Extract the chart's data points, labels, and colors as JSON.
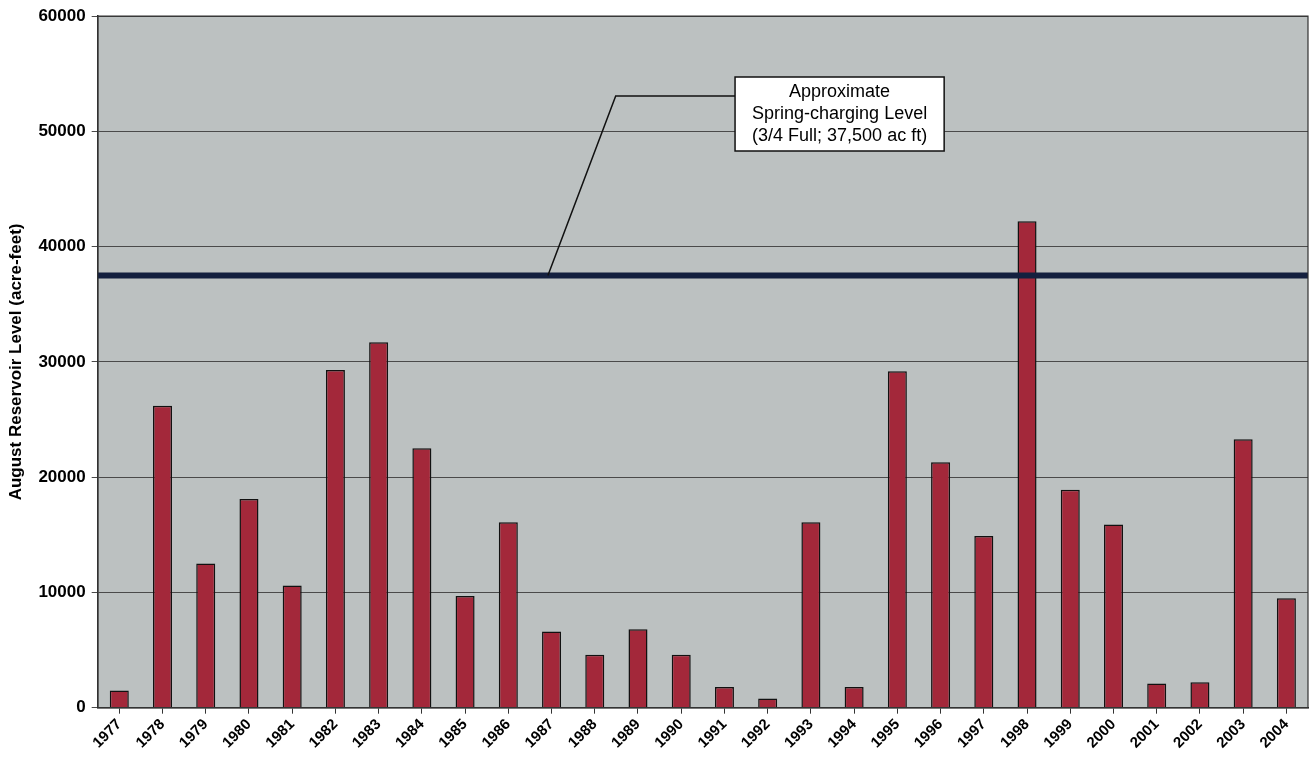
{
  "chart_data": {
    "type": "bar",
    "ylabel": "August Reservoir Level (acre-feet)",
    "categories": [
      "1977",
      "1978",
      "1979",
      "1980",
      "1981",
      "1982",
      "1983",
      "1984",
      "1985",
      "1986",
      "1987",
      "1988",
      "1989",
      "1990",
      "1991",
      "1992",
      "1993",
      "1994",
      "1995",
      "1996",
      "1997",
      "1998",
      "1999",
      "2000",
      "2001",
      "2002",
      "2003",
      "2004"
    ],
    "values": [
      1500,
      26200,
      12500,
      18100,
      10600,
      29300,
      31700,
      22500,
      9700,
      16100,
      6600,
      4600,
      6800,
      4600,
      1800,
      800,
      16100,
      1800,
      29200,
      21300,
      14900,
      42200,
      18900,
      15900,
      2100,
      2200,
      23300,
      9500
    ],
    "color": "#a3283a",
    "ylim": [
      0,
      60000
    ],
    "yticks": [
      0,
      10000,
      20000,
      30000,
      40000,
      50000,
      60000
    ],
    "grid": "y",
    "ref_lines": [
      {
        "axis": "y",
        "value": 37500,
        "label": "Approximate Spring-charging Level (3/4 Full; 37,500 ac ft)",
        "color": "#14203f",
        "line_style": "solid"
      }
    ]
  }
}
